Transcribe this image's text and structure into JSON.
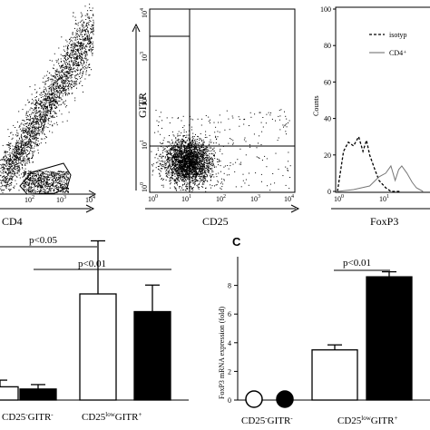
{
  "panels": {
    "flow1": {
      "xlabel": "CD4",
      "xticks": [
        "10",
        "10",
        "10"
      ],
      "xtick_exp": [
        "2",
        "3",
        "4"
      ]
    },
    "flow2": {
      "xlabel": "CD25",
      "ylabel": "GITR",
      "ticks": [
        "10",
        "10",
        "10",
        "10",
        "10"
      ],
      "tick_exp": [
        "0",
        "1",
        "2",
        "3",
        "4"
      ]
    },
    "histogram": {
      "xlabel": "FoxP3",
      "ylabel": "Counts",
      "yticks": [
        "100",
        "80",
        "60",
        "40",
        "20",
        "0"
      ],
      "xticks": [
        "10",
        "10"
      ],
      "xtick_exp": [
        "0",
        "1"
      ],
      "legend": [
        {
          "label": "isotyp",
          "style": "dashed"
        },
        {
          "label": "CD4⁺",
          "style": "solid"
        }
      ]
    },
    "barB": {
      "pval_top": "p<0.05",
      "pval_bottom": "p<0.01",
      "group_labels": [
        {
          "main": "CD25",
          "sup": "-",
          "mid": "GITR",
          "sup2": "-"
        },
        {
          "main": "CD25",
          "sup": "low",
          "mid": "GITR",
          "sup2": "+"
        }
      ]
    },
    "barC": {
      "letter": "C",
      "ylabel": "FoxP3 mRNA expression (fold)",
      "yticks": [
        "0",
        "2",
        "4",
        "6",
        "8"
      ],
      "pval": "p<0.01",
      "group_labels": [
        {
          "main": "CD25",
          "sup": "-",
          "mid": "GITR",
          "sup2": "-"
        },
        {
          "main": "CD25",
          "sup": "low",
          "mid": "GITR",
          "sup2": "+"
        }
      ]
    }
  },
  "chart_data": [
    {
      "type": "scatter",
      "panel": "flow1",
      "xlabel": "CD4",
      "x_scale": "log",
      "xlim": [
        10,
        10000
      ],
      "description_of_marks": "dense dot plot with gated CD4+ population"
    },
    {
      "type": "scatter",
      "panel": "flow2",
      "xlabel": "CD25",
      "ylabel": "GITR",
      "x_scale": "log",
      "y_scale": "log",
      "xlim": [
        1,
        10000
      ],
      "ylim": [
        1,
        10000
      ]
    },
    {
      "type": "line",
      "panel": "histogram",
      "xlabel": "FoxP3",
      "ylabel": "Counts",
      "ylim": [
        0,
        100
      ],
      "x_scale": "log",
      "series": [
        {
          "name": "isotyp",
          "style": "dashed",
          "x": [
            1,
            1.3,
            1.6,
            2.0,
            2.5,
            3.0,
            3.5,
            4.0,
            5.0,
            6.0,
            8.0,
            10,
            15
          ],
          "values": [
            0,
            22,
            27,
            25,
            30,
            22,
            28,
            20,
            12,
            6,
            2,
            0,
            0
          ]
        },
        {
          "name": "CD4⁺",
          "style": "solid",
          "x": [
            1,
            2,
            4,
            6,
            8,
            10,
            12,
            14,
            16,
            20,
            25,
            30,
            40
          ],
          "values": [
            0,
            1,
            3,
            8,
            10,
            14,
            6,
            12,
            14,
            10,
            5,
            2,
            0
          ]
        }
      ]
    },
    {
      "type": "bar",
      "panel": "B",
      "categories": [
        "CD25⁻GITR⁻ (open)",
        "CD25⁻GITR⁻ (filled)",
        "CD25lowGITR⁺ (open)",
        "CD25lowGITR⁺ (filled)"
      ],
      "values": [
        0.3,
        0.25,
        2.4,
        2.0
      ],
      "errors": [
        0.15,
        0.1,
        1.2,
        0.6
      ],
      "ylim": [
        0,
        4.2
      ]
    },
    {
      "type": "bar",
      "panel": "C",
      "ylabel": "FoxP3 mRNA expression (fold)",
      "categories": [
        "CD25⁻GITR⁻ (open)",
        "CD25⁻GITR⁻ (filled)",
        "CD25lowGITR⁺ (open)",
        "CD25lowGITR⁺ (filled)"
      ],
      "values": [
        0,
        0,
        3.5,
        8.6
      ],
      "errors": [
        0,
        0,
        0.35,
        0.35
      ],
      "ylim": [
        0,
        10
      ]
    }
  ]
}
